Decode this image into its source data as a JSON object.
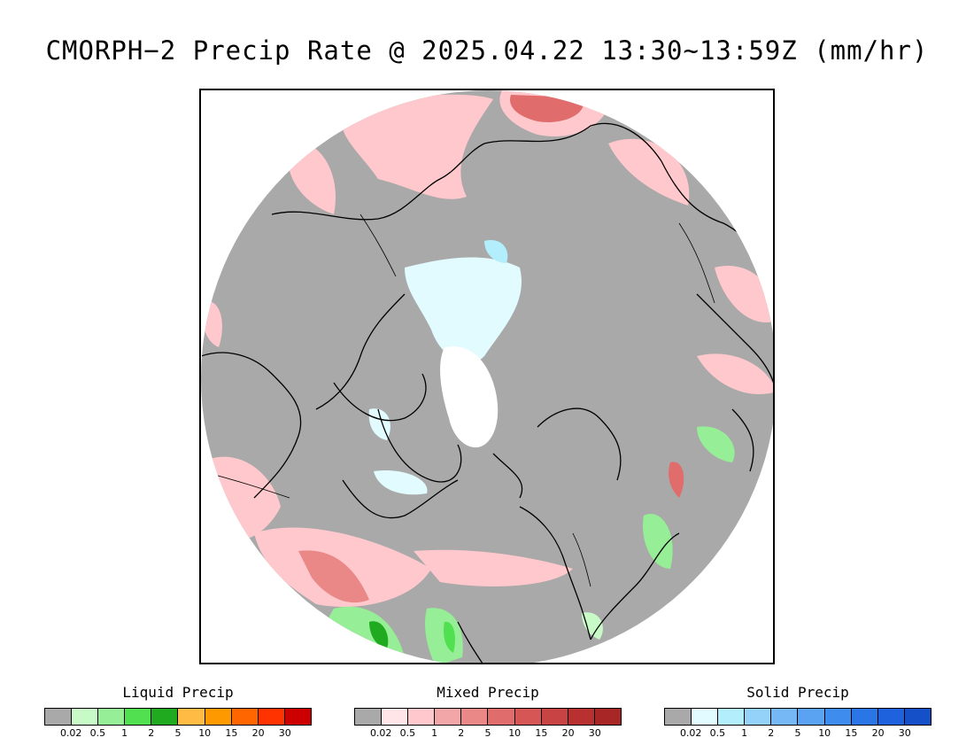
{
  "title": "CMORPH−2 Precip Rate @ 2025.04.22 13:30~13:59Z (mm/hr)",
  "map": {
    "projection": "north-polar-stereographic",
    "background_color": "#a9a9a9",
    "icons": [
      "sea-ice-region",
      "coastlines",
      "country-borders"
    ]
  },
  "legends": [
    {
      "title": "Liquid Precip",
      "colors": [
        "#a9a9a9",
        "#c8fac8",
        "#96ee96",
        "#50e050",
        "#20aa20",
        "#ffbb44",
        "#ff9900",
        "#ff6600",
        "#ff3300",
        "#cc0000"
      ],
      "ticks": [
        "0.02",
        "0.5",
        "1",
        "2",
        "5",
        "10",
        "15",
        "20",
        "30"
      ]
    },
    {
      "title": "Mixed Precip",
      "colors": [
        "#a9a9a9",
        "#ffe4e8",
        "#ffc8cc",
        "#f2a6a8",
        "#ea8888",
        "#e06c6c",
        "#d65656",
        "#c84444",
        "#b83030",
        "#a82626"
      ],
      "ticks": [
        "0.02",
        "0.5",
        "1",
        "2",
        "5",
        "10",
        "15",
        "20",
        "30"
      ]
    },
    {
      "title": "Solid Precip",
      "colors": [
        "#a9a9a9",
        "#e2fbff",
        "#b2eefc",
        "#94d2fa",
        "#76b8f6",
        "#5aa2f2",
        "#3e8cee",
        "#2a76e6",
        "#1e62de",
        "#1650c8"
      ],
      "ticks": [
        "0.02",
        "0.5",
        "1",
        "2",
        "5",
        "10",
        "15",
        "20",
        "30"
      ]
    }
  ]
}
